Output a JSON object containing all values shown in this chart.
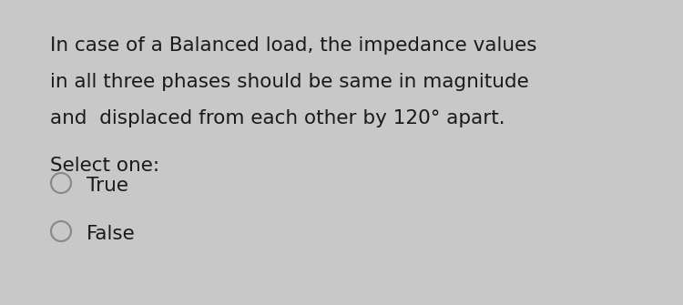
{
  "background_color": "#c8c8c8",
  "panel_color": "#e8f0f5",
  "question_lines": [
    "In case of a Balanced load, the impedance values",
    "in all three phases should be same in magnitude",
    "and  displaced from each other by 120° apart."
  ],
  "select_label": "Select one:",
  "options": [
    "True",
    "False"
  ],
  "text_color": "#1a1a1a",
  "question_fontsize": 15.5,
  "option_fontsize": 15.5,
  "select_fontsize": 15.5,
  "circle_color": "#888888"
}
